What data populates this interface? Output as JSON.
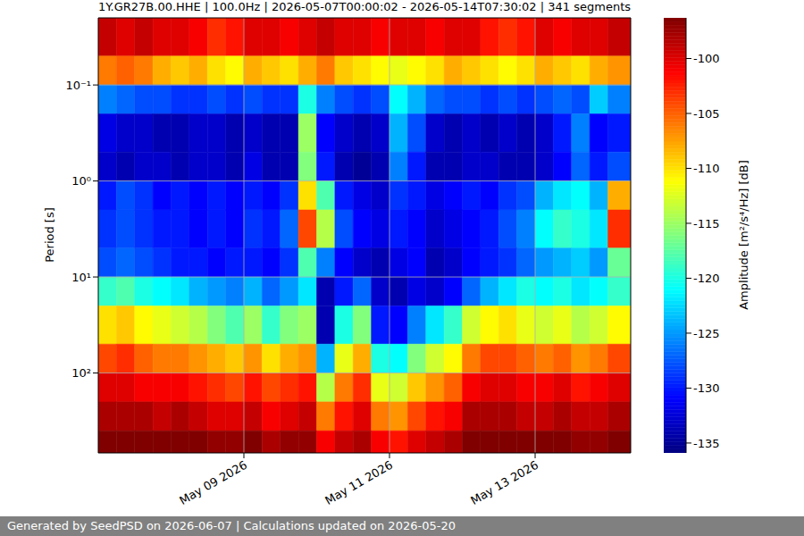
{
  "chart_data": {
    "type": "heatmap",
    "title": "1Y.GR27B.00.HHE | 100.0Hz | 2026-05-07T00:00:02 - 2026-05-14T07:30:02 | 341 segments",
    "footer": "Generated by SeedPSD on 2026-06-07 | Calculations updated on 2026-05-20",
    "y_label": "Period [s]",
    "log": "y",
    "grid": true,
    "xlim": [
      "2026-05-07T00:00:02",
      "2026-05-14T07:30:02"
    ],
    "xticks": [
      {
        "value": "2026-05-09T00:00:00",
        "label": "May 09 2026"
      },
      {
        "value": "2026-05-11T00:00:00",
        "label": "May 11 2026"
      },
      {
        "value": "2026-05-13T00:00:00",
        "label": "May 13 2026"
      }
    ],
    "ylim": [
      0.02,
      680
    ],
    "yticks": [
      {
        "value": 0.1,
        "label": "10⁻¹"
      },
      {
        "value": 1,
        "label": "10⁰"
      },
      {
        "value": 10,
        "label": "10¹"
      },
      {
        "value": 100,
        "label": "10²"
      }
    ],
    "x": [
      "2026-05-07T00:00",
      "2026-05-07T06:00",
      "2026-05-07T12:00",
      "2026-05-07T18:00",
      "2026-05-08T00:00",
      "2026-05-08T06:00",
      "2026-05-08T12:00",
      "2026-05-08T18:00",
      "2026-05-09T00:00",
      "2026-05-09T06:00",
      "2026-05-09T12:00",
      "2026-05-09T18:00",
      "2026-05-10T00:00",
      "2026-05-10T06:00",
      "2026-05-10T12:00",
      "2026-05-10T18:00",
      "2026-05-11T00:00",
      "2026-05-11T06:00",
      "2026-05-11T12:00",
      "2026-05-11T18:00",
      "2026-05-12T00:00",
      "2026-05-12T06:00",
      "2026-05-12T12:00",
      "2026-05-12T18:00",
      "2026-05-13T00:00",
      "2026-05-13T06:00",
      "2026-05-13T12:00",
      "2026-05-13T18:00",
      "2026-05-14T00:00"
    ],
    "y_edges": [
      0.02,
      0.05,
      0.1,
      0.2,
      0.5,
      1,
      2,
      5,
      10,
      20,
      50,
      100,
      200,
      400,
      680
    ],
    "cells": [
      [
        -99,
        -100,
        -99,
        -100,
        -100,
        -101,
        -103,
        -102,
        -100,
        -100,
        -101,
        -100,
        -99,
        -100,
        -100,
        -101,
        -100,
        -100,
        -101,
        -100,
        -100,
        -102,
        -103,
        -102,
        -100,
        -101,
        -100,
        -100,
        -99
      ],
      [
        -106,
        -105,
        -106,
        -108,
        -109,
        -108,
        -110,
        -111,
        -108,
        -109,
        -110,
        -108,
        -106,
        -109,
        -110,
        -111,
        -112,
        -111,
        -110,
        -108,
        -109,
        -110,
        -111,
        -110,
        -108,
        -109,
        -110,
        -108,
        -107
      ],
      [
        -126,
        -127,
        -128,
        -128,
        -129,
        -129,
        -128,
        -129,
        -128,
        -129,
        -129,
        -120,
        -126,
        -128,
        -129,
        -128,
        -121,
        -124,
        -127,
        -128,
        -128,
        -129,
        -128,
        -129,
        -128,
        -127,
        -128,
        -123,
        -126
      ],
      [
        -132,
        -133,
        -133,
        -134,
        -134,
        -133,
        -133,
        -134,
        -133,
        -134,
        -134,
        -115,
        -131,
        -133,
        -134,
        -133,
        -124,
        -128,
        -133,
        -134,
        -133,
        -134,
        -133,
        -134,
        -133,
        -130,
        -126,
        -131,
        -130
      ],
      [
        -133,
        -134,
        -133,
        -133,
        -134,
        -133,
        -133,
        -134,
        -132,
        -134,
        -134,
        -116,
        -130,
        -134,
        -135,
        -134,
        -126,
        -130,
        -134,
        -134,
        -133,
        -133,
        -134,
        -134,
        -133,
        -131,
        -127,
        -130,
        -128
      ],
      [
        -130,
        -128,
        -129,
        -131,
        -130,
        -131,
        -130,
        -131,
        -130,
        -131,
        -129,
        -110,
        -118,
        -130,
        -132,
        -133,
        -129,
        -130,
        -132,
        -131,
        -130,
        -131,
        -129,
        -128,
        -124,
        -122,
        -121,
        -124,
        -108
      ],
      [
        -129,
        -128,
        -129,
        -130,
        -130,
        -131,
        -130,
        -131,
        -129,
        -130,
        -127,
        -104,
        -114,
        -128,
        -131,
        -132,
        -130,
        -131,
        -133,
        -132,
        -131,
        -130,
        -128,
        -126,
        -121,
        -119,
        -120,
        -122,
        -103
      ],
      [
        -128,
        -127,
        -128,
        -129,
        -130,
        -130,
        -131,
        -130,
        -130,
        -131,
        -129,
        -118,
        -126,
        -131,
        -133,
        -134,
        -132,
        -131,
        -134,
        -133,
        -131,
        -130,
        -129,
        -127,
        -125,
        -124,
        -123,
        -125,
        -117
      ],
      [
        -119,
        -118,
        -120,
        -121,
        -122,
        -124,
        -125,
        -126,
        -124,
        -127,
        -125,
        -122,
        -134,
        -130,
        -127,
        -133,
        -134,
        -132,
        -133,
        -131,
        -127,
        -124,
        -122,
        -120,
        -121,
        -120,
        -122,
        -121,
        -119
      ],
      [
        -110,
        -109,
        -111,
        -112,
        -113,
        -114,
        -116,
        -118,
        -115,
        -119,
        -116,
        -115,
        -134,
        -120,
        -116,
        -130,
        -131,
        -126,
        -122,
        -119,
        -113,
        -111,
        -110,
        -112,
        -113,
        -112,
        -114,
        -113,
        -111
      ],
      [
        -104,
        -103,
        -105,
        -106,
        -106,
        -107,
        -108,
        -109,
        -107,
        -110,
        -108,
        -107,
        -124,
        -112,
        -108,
        -120,
        -121,
        -116,
        -113,
        -111,
        -106,
        -104,
        -104,
        -105,
        -106,
        -105,
        -107,
        -106,
        -104
      ],
      [
        -100,
        -100,
        -101,
        -101,
        -101,
        -102,
        -103,
        -104,
        -102,
        -104,
        -103,
        -102,
        -114,
        -106,
        -103,
        -112,
        -113,
        -109,
        -107,
        -105,
        -101,
        -100,
        -100,
        -101,
        -101,
        -100,
        -102,
        -101,
        -100
      ],
      [
        -98,
        -98,
        -98,
        -99,
        -98,
        -99,
        -100,
        -100,
        -99,
        -101,
        -100,
        -99,
        -106,
        -102,
        -100,
        -106,
        -107,
        -104,
        -102,
        -101,
        -98,
        -98,
        -98,
        -99,
        -99,
        -98,
        -99,
        -99,
        -98
      ],
      [
        -96,
        -96,
        -96,
        -96,
        -96,
        -96,
        -97,
        -97,
        -96,
        -98,
        -97,
        -97,
        -101,
        -99,
        -98,
        -101,
        -102,
        -100,
        -99,
        -98,
        -96,
        -96,
        -96,
        -96,
        -96,
        -96,
        -97,
        -97,
        -96
      ]
    ],
    "colorbar": {
      "label": "Amplitude [m²/s⁴/Hz] [dB]",
      "range": [
        -135.9,
        -96.3
      ],
      "ticks": [
        -100,
        -105,
        -110,
        -115,
        -120,
        -125,
        -130,
        -135
      ]
    }
  }
}
